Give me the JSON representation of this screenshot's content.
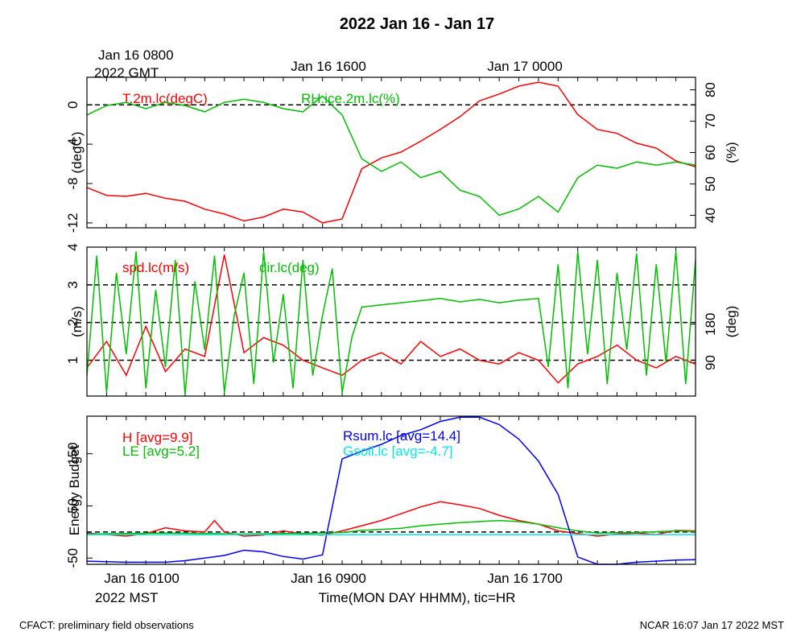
{
  "title": "2022 Jan 16 - Jan 17",
  "top_time_labels": {
    "gmt_start_line1": "Jan 16 0800",
    "gmt_start_line2": "2022 GMT",
    "mid": "Jan 16 1600",
    "end": "Jan 17 0000"
  },
  "bottom_time_labels": {
    "start": "Jan 16 0100",
    "start_line2": "2022 MST",
    "mid": "Jan 16 0900",
    "end": "Jan 16 1700",
    "xlabel": "Time(MON DAY HHMM), tic=HR"
  },
  "footer": {
    "left": "CFACT: preliminary field observations",
    "right": "NCAR 16:07 Jan 17 2022 MST"
  },
  "colors": {
    "red": "#ff0000",
    "green": "#00c000",
    "blue": "#0000ff",
    "cyan": "#00e8e8",
    "black": "#000000"
  },
  "chart_data": [
    {
      "type": "line",
      "x_unit": "hours since Jan 16 0100 MST",
      "xlim": [
        0,
        31
      ],
      "left_ylabel": "(degC)",
      "left_ylim": [
        -12.5,
        2.8
      ],
      "left_ticks": [
        0,
        -4,
        -8,
        -12
      ],
      "right_ylabel": "(%)",
      "right_ylim": [
        36,
        84
      ],
      "right_ticks": [
        40,
        50,
        60,
        70,
        80
      ],
      "reference_lines_left": [
        0
      ],
      "series": [
        {
          "name": "T.2m.lc(degC)",
          "axis": "left",
          "color": "red",
          "x": [
            0,
            1,
            2,
            3,
            4,
            5,
            6,
            7,
            8,
            9,
            10,
            11,
            12,
            13,
            14,
            15,
            16,
            17,
            18,
            19,
            20,
            21,
            22,
            23,
            24,
            25,
            26,
            27,
            28,
            29,
            30,
            31
          ],
          "values": [
            -8.4,
            -9.2,
            -9.3,
            -9.0,
            -9.5,
            -9.8,
            -10.6,
            -11.1,
            -11.8,
            -11.4,
            -10.6,
            -10.9,
            -12.0,
            -11.6,
            -6.5,
            -5.4,
            -4.8,
            -3.7,
            -2.5,
            -1.2,
            0.4,
            1.1,
            1.9,
            2.3,
            1.9,
            -1.0,
            -2.5,
            -2.9,
            -3.9,
            -4.4,
            -5.7,
            -6.3
          ]
        },
        {
          "name": "RH.ice.2m.lc(%)",
          "axis": "right",
          "color": "green",
          "x": [
            0,
            1,
            2,
            3,
            4,
            5,
            6,
            7,
            8,
            9,
            10,
            11,
            12,
            13,
            14,
            15,
            16,
            17,
            18,
            19,
            20,
            21,
            22,
            23,
            24,
            25,
            26,
            27,
            28,
            29,
            30,
            31
          ],
          "values": [
            72,
            75,
            76,
            74,
            76,
            75,
            73,
            76,
            77,
            76,
            74,
            73,
            78,
            72,
            58,
            54,
            57,
            52,
            54,
            48,
            46,
            40,
            42,
            46,
            41,
            52,
            56,
            55,
            57,
            56,
            57,
            56
          ]
        }
      ]
    },
    {
      "type": "line",
      "x_unit": "hours since Jan 16 0100 MST",
      "xlim": [
        0,
        31
      ],
      "left_ylabel": "(m/s)",
      "left_ylim": [
        0.05,
        4.0
      ],
      "left_ticks": [
        1,
        2,
        3,
        4
      ],
      "right_ylabel": "(deg)",
      "right_ylim": [
        12,
        360
      ],
      "right_ticks": [
        90,
        180
      ],
      "reference_lines_left": [
        1,
        2,
        3
      ],
      "series": [
        {
          "name": "spd.lc(m/s)",
          "axis": "left",
          "color": "red",
          "x": [
            0,
            1,
            2,
            3,
            4,
            5,
            6,
            7,
            8,
            9,
            10,
            11,
            12,
            13,
            14,
            15,
            16,
            17,
            18,
            19,
            20,
            21,
            22,
            23,
            24,
            25,
            26,
            27,
            28,
            29,
            30,
            31
          ],
          "values": [
            0.8,
            1.5,
            0.6,
            1.9,
            0.7,
            1.3,
            1.1,
            3.8,
            1.2,
            1.6,
            1.4,
            1.0,
            0.8,
            0.6,
            1.0,
            1.2,
            0.9,
            1.5,
            1.1,
            1.3,
            1.0,
            0.9,
            1.2,
            1.0,
            0.4,
            0.9,
            1.1,
            1.4,
            1.0,
            0.8,
            1.1,
            0.9
          ]
        },
        {
          "name": "dir.lc(deg)",
          "axis": "right",
          "color": "green",
          "x": [
            0,
            0.5,
            1,
            1.5,
            2,
            2.5,
            3,
            3.5,
            4,
            4.5,
            5,
            5.5,
            6,
            6.5,
            7,
            7.5,
            8,
            8.5,
            9,
            9.5,
            10,
            10.5,
            11,
            11.5,
            12,
            12.5,
            13,
            13.5,
            14,
            15,
            16,
            17,
            18,
            19,
            20,
            21,
            22,
            23,
            23.5,
            24,
            24.5,
            25,
            25.5,
            26,
            26.5,
            27,
            27.5,
            28,
            28.5,
            29,
            29.5,
            30,
            30.5,
            31
          ],
          "values": [
            60,
            340,
            20,
            300,
            110,
            350,
            30,
            260,
            80,
            330,
            15,
            280,
            120,
            340,
            20,
            200,
            300,
            40,
            350,
            90,
            250,
            30,
            330,
            60,
            200,
            310,
            20,
            150,
            220,
            225,
            230,
            235,
            240,
            232,
            238,
            230,
            236,
            240,
            80,
            320,
            30,
            350,
            110,
            330,
            40,
            300,
            120,
            345,
            60,
            320,
            90,
            350,
            40,
            330
          ]
        }
      ]
    },
    {
      "type": "line",
      "x_unit": "hours since Jan 16 0100 MST",
      "xlim": [
        0,
        31
      ],
      "ylabel": "Energy Budget",
      "ylim": [
        -62,
        222
      ],
      "ticks": [
        -50,
        50,
        150
      ],
      "reference_lines": [
        0
      ],
      "series": [
        {
          "name": "H [avg=9.9]",
          "color": "red",
          "x": [
            0,
            1,
            2,
            3,
            4,
            5,
            6,
            6.5,
            7,
            8,
            9,
            10,
            11,
            12,
            13,
            14,
            15,
            16,
            17,
            18,
            19,
            20,
            21,
            22,
            23,
            24,
            25,
            26,
            27,
            28,
            29,
            30,
            31
          ],
          "values": [
            -2,
            -5,
            -8,
            -3,
            8,
            2,
            0,
            22,
            0,
            -8,
            -6,
            2,
            -4,
            -6,
            2,
            12,
            22,
            35,
            48,
            58,
            52,
            45,
            32,
            22,
            15,
            2,
            -3,
            -8,
            -4,
            -2,
            -5,
            3,
            2
          ]
        },
        {
          "name": "LE [avg=5.2]",
          "color": "green",
          "x": [
            0,
            2,
            4,
            6,
            8,
            10,
            12,
            13,
            14,
            15,
            16,
            17,
            18,
            19,
            20,
            21,
            22,
            23,
            24,
            25,
            26,
            28,
            30,
            31
          ],
          "values": [
            -4,
            -3,
            -2,
            -3,
            -4,
            -3,
            -2,
            -1,
            3,
            5,
            7,
            12,
            15,
            18,
            20,
            22,
            20,
            15,
            8,
            2,
            -2,
            -1,
            2,
            1
          ]
        },
        {
          "name": "Rsum.lc [avg=14.4]",
          "color": "blue",
          "x": [
            0,
            2,
            4,
            5,
            6,
            7,
            8,
            9,
            10,
            11,
            12,
            13,
            14,
            15,
            16,
            17,
            18,
            19,
            20,
            21,
            22,
            23,
            24,
            25,
            26,
            27,
            28,
            29,
            30,
            31
          ],
          "values": [
            -56,
            -58,
            -58,
            -55,
            -50,
            -45,
            -35,
            -38,
            -47,
            -52,
            -44,
            140,
            155,
            168,
            185,
            196,
            212,
            220,
            220,
            206,
            178,
            136,
            72,
            -48,
            -68,
            -64,
            -58,
            -56,
            -54,
            -53
          ]
        },
        {
          "name": "Gsoil.lc [avg=-4.7]",
          "color": "cyan",
          "x": [
            0,
            31
          ],
          "values": [
            -5,
            -5
          ]
        }
      ]
    }
  ]
}
